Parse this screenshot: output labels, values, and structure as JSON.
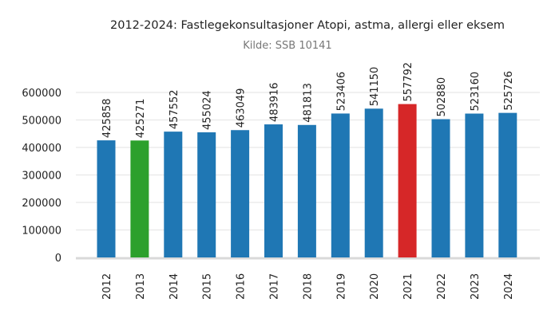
{
  "chart_data": {
    "type": "bar",
    "title": "2012-2024: Fastlegekonsultasjoner Atopi, astma, allergi eller eksem",
    "subtitle": "Kilde: SSB 10141",
    "xlabel": "",
    "ylabel": "",
    "categories": [
      "2012",
      "2013",
      "2014",
      "2015",
      "2016",
      "2017",
      "2018",
      "2019",
      "2020",
      "2021",
      "2022",
      "2023",
      "2024"
    ],
    "values": [
      425858,
      425271,
      457552,
      455024,
      463049,
      483916,
      481813,
      523406,
      541150,
      557792,
      502880,
      523160,
      525726
    ],
    "bar_colors": [
      "#1f77b4",
      "#2ca02c",
      "#1f77b4",
      "#1f77b4",
      "#1f77b4",
      "#1f77b4",
      "#1f77b4",
      "#1f77b4",
      "#1f77b4",
      "#d62728",
      "#1f77b4",
      "#1f77b4",
      "#1f77b4"
    ],
    "yticks": [
      0,
      100000,
      200000,
      300000,
      400000,
      500000,
      600000
    ],
    "ylim": [
      0,
      600000
    ],
    "grid": true,
    "data_labels": true
  }
}
